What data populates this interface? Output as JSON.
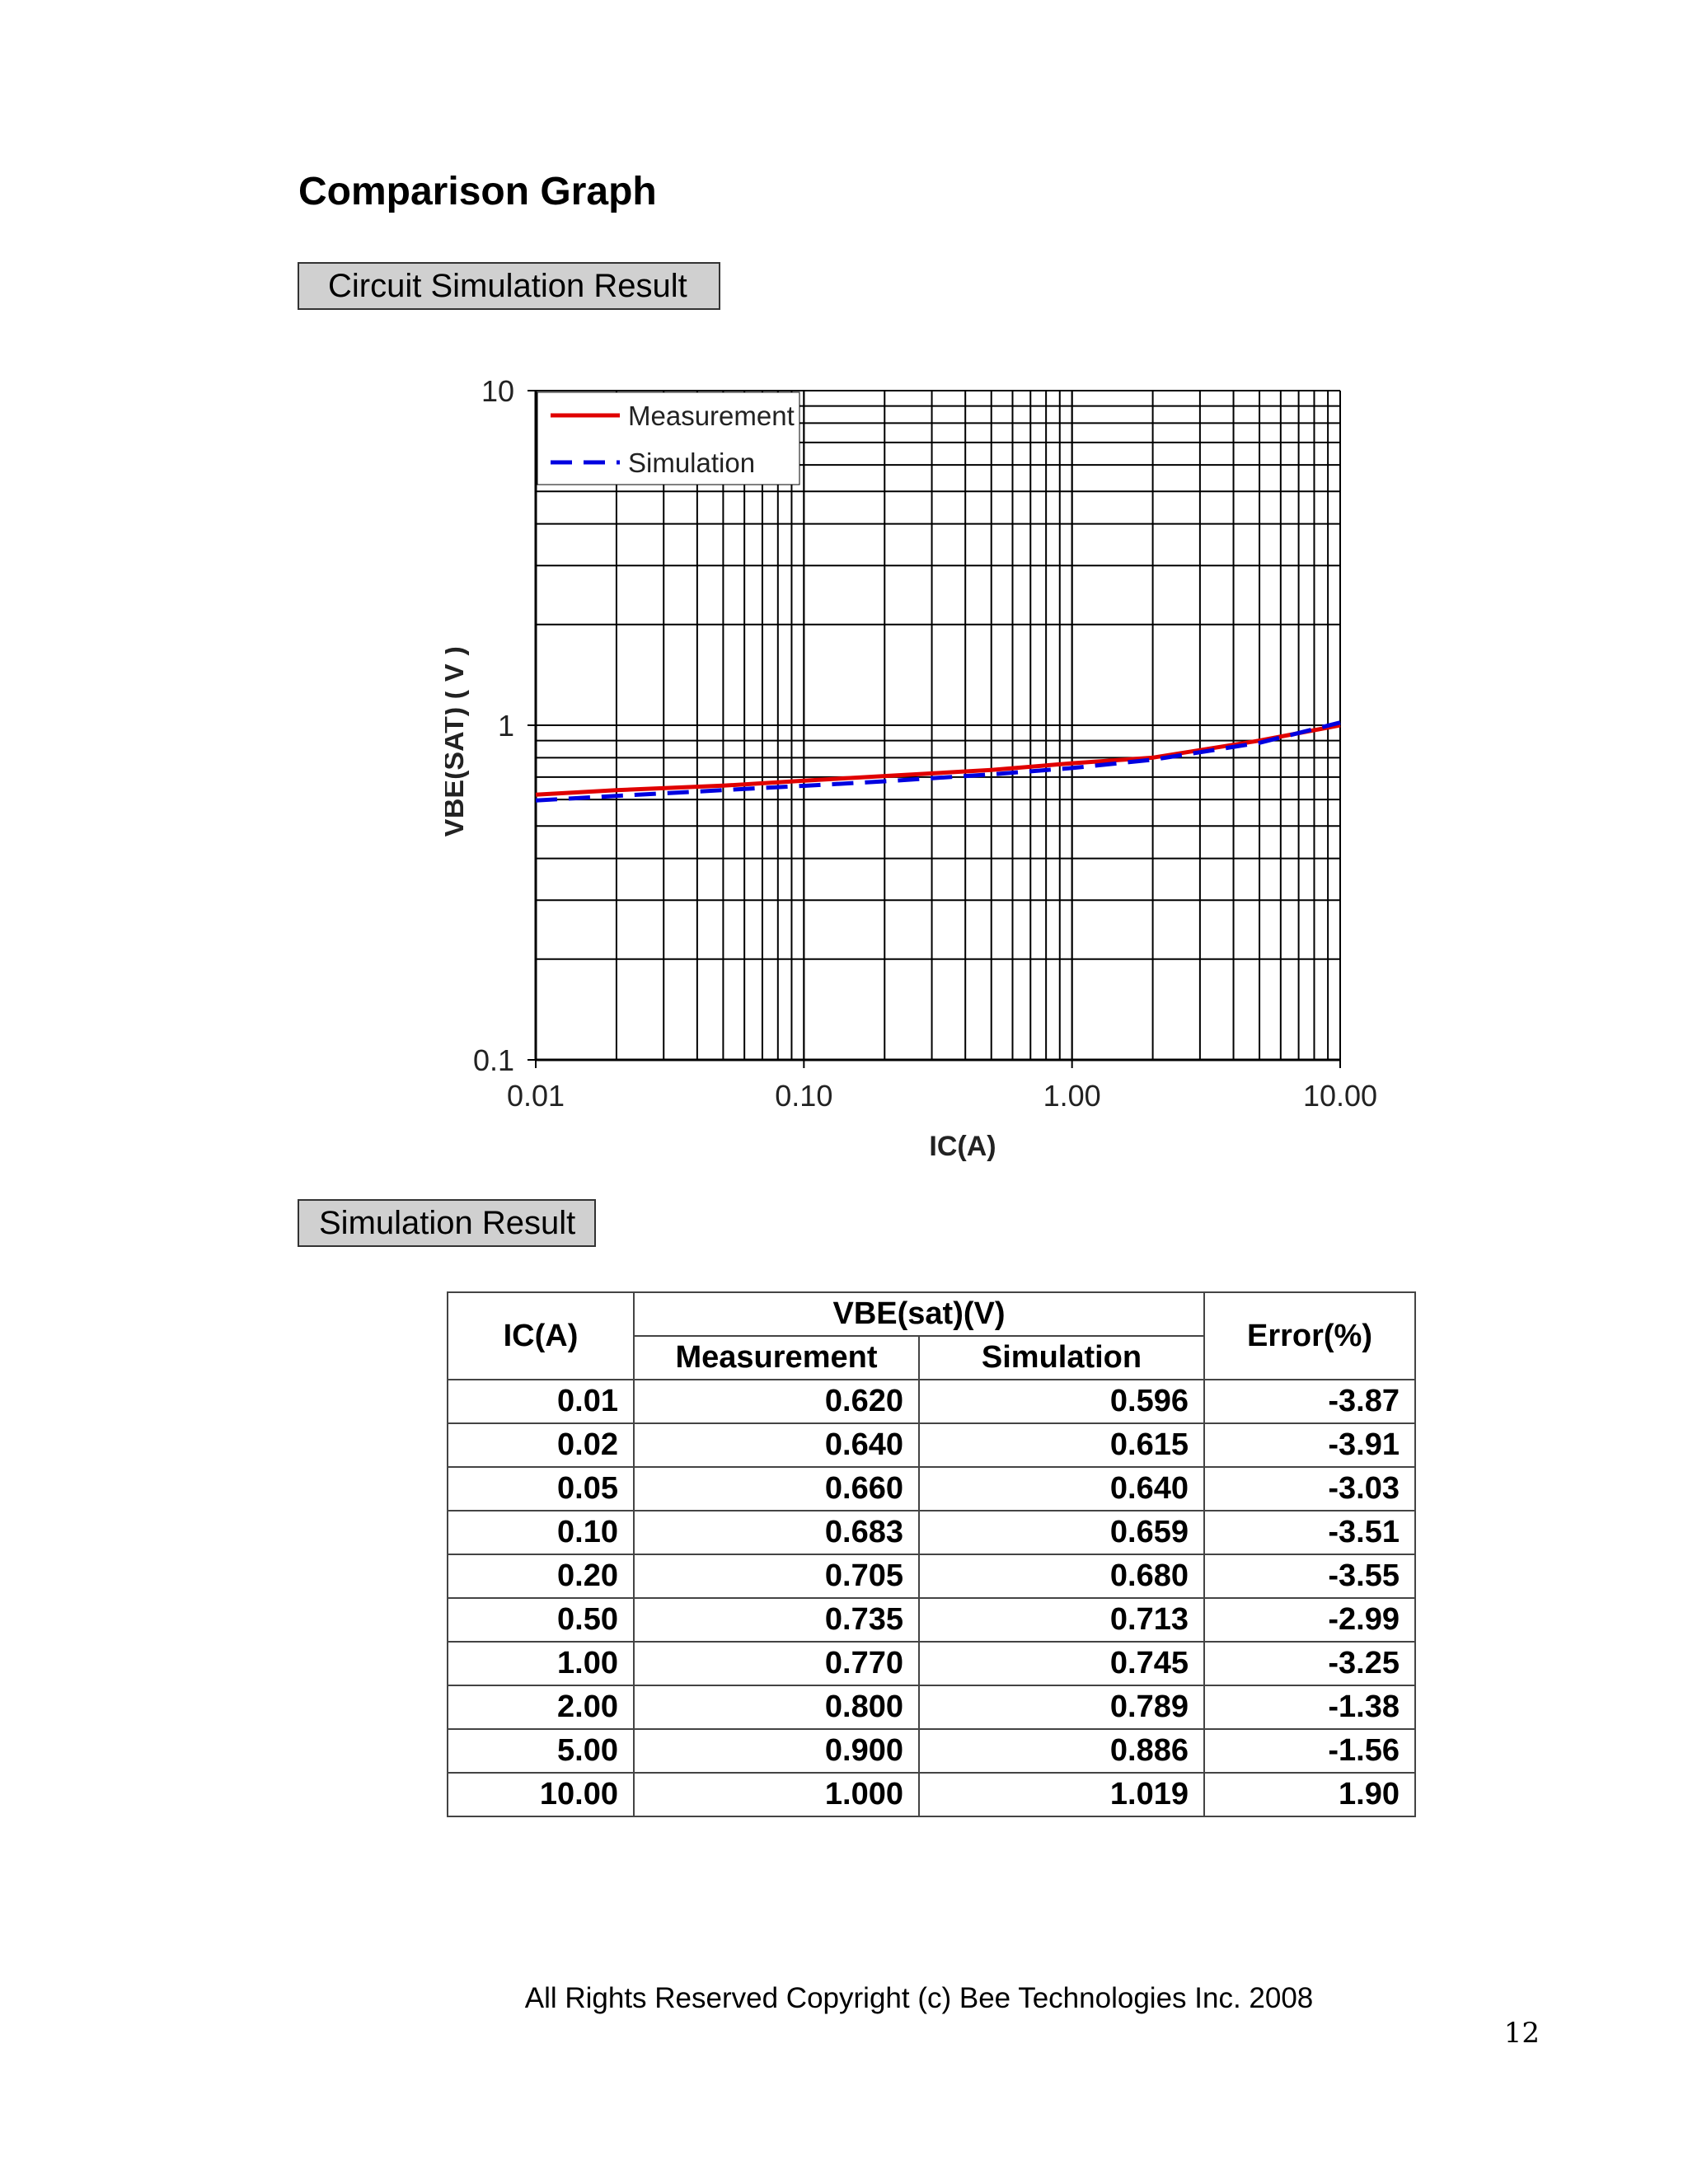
{
  "page": {
    "title": "Comparison Graph",
    "section_circuit": "Circuit Simulation Result",
    "section_sim": "Simulation Result",
    "copyright": "All Rights Reserved Copyright (c) Bee Technologies Inc. 2008",
    "page_number": "12"
  },
  "chart_data": {
    "type": "line",
    "xscale": "log",
    "yscale": "log",
    "xlabel": "IC(A)",
    "ylabel": "VBE(SAT) ( V )",
    "xlim": [
      0.01,
      10
    ],
    "ylim": [
      0.1,
      10
    ],
    "xticks": [
      "0.01",
      "0.10",
      "1.00",
      "10.00"
    ],
    "yticks": [
      "0.1",
      "1",
      "10"
    ],
    "grid": true,
    "legend": "top-left",
    "x": [
      0.01,
      0.02,
      0.05,
      0.1,
      0.2,
      0.5,
      1.0,
      2.0,
      5.0,
      10.0
    ],
    "series": [
      {
        "name": "Measurement",
        "color": "#e00000",
        "dash": "solid",
        "values": [
          0.62,
          0.64,
          0.66,
          0.683,
          0.705,
          0.735,
          0.77,
          0.8,
          0.9,
          1.0
        ]
      },
      {
        "name": "Simulation",
        "color": "#0000e0",
        "dash": "dashed",
        "values": [
          0.596,
          0.615,
          0.64,
          0.659,
          0.68,
          0.713,
          0.745,
          0.789,
          0.886,
          1.019
        ]
      }
    ]
  },
  "table": {
    "header_ic": "IC(A)",
    "header_vbe": "VBE(sat)(V)",
    "header_meas": "Measurement",
    "header_sim": "Simulation",
    "header_err": "Error(%)",
    "rows": [
      [
        "0.01",
        "0.620",
        "0.596",
        "-3.87"
      ],
      [
        "0.02",
        "0.640",
        "0.615",
        "-3.91"
      ],
      [
        "0.05",
        "0.660",
        "0.640",
        "-3.03"
      ],
      [
        "0.10",
        "0.683",
        "0.659",
        "-3.51"
      ],
      [
        "0.20",
        "0.705",
        "0.680",
        "-3.55"
      ],
      [
        "0.50",
        "0.735",
        "0.713",
        "-2.99"
      ],
      [
        "1.00",
        "0.770",
        "0.745",
        "-3.25"
      ],
      [
        "2.00",
        "0.800",
        "0.789",
        "-1.38"
      ],
      [
        "5.00",
        "0.900",
        "0.886",
        "-1.56"
      ],
      [
        "10.00",
        "1.000",
        "1.019",
        "1.90"
      ]
    ]
  }
}
